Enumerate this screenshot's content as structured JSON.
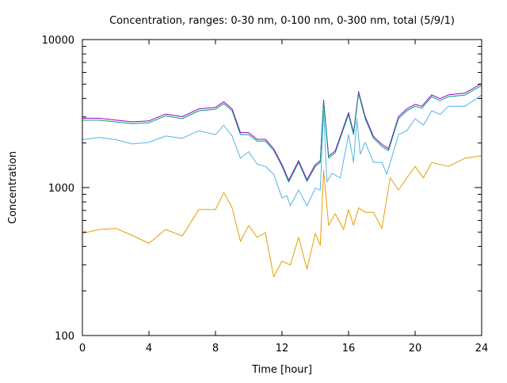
{
  "chart_data": {
    "type": "line",
    "title": "Concentration, ranges: 0-30 nm, 0-100 nm, 0-300 nm, total (5/9/1)",
    "xlabel": "Time [hour]",
    "ylabel": "Concentration",
    "xlim": [
      0,
      24
    ],
    "ylim": [
      100,
      10000
    ],
    "yscale": "log",
    "xticks": [
      "0",
      "4",
      "8",
      "12",
      "16",
      "20",
      "24"
    ],
    "xtick_values": [
      0,
      4,
      8,
      12,
      16,
      20,
      24
    ],
    "yticks": [
      "100",
      "1000",
      "10000"
    ],
    "ytick_values": [
      100,
      1000,
      10000
    ],
    "grid": false,
    "series": [
      {
        "name": "total",
        "color": "#9400d3",
        "x": [
          0,
          1,
          2,
          3,
          4,
          5,
          6,
          7,
          8,
          8.5,
          9,
          9.5,
          10,
          10.5,
          11,
          11.5,
          12,
          12.4,
          13,
          13.5,
          14,
          14.3,
          14.5,
          14.8,
          15.2,
          16,
          16.3,
          16.6,
          17,
          17.5,
          18,
          18.4,
          19,
          19.5,
          20,
          20.4,
          21,
          21.5,
          22,
          23,
          24
        ],
        "values": [
          2940,
          2940,
          2860,
          2780,
          2820,
          3140,
          3010,
          3400,
          3480,
          3800,
          3400,
          2350,
          2350,
          2120,
          2120,
          1830,
          1430,
          1120,
          1520,
          1130,
          1430,
          1520,
          3900,
          1630,
          1770,
          3210,
          2350,
          4450,
          3010,
          2210,
          1960,
          1830,
          3010,
          3400,
          3650,
          3540,
          4230,
          3990,
          4230,
          4350,
          5050
        ]
      },
      {
        "name": "0-300 nm",
        "color": "#009e73",
        "x": [
          0,
          1,
          2,
          3,
          4,
          5,
          6,
          7,
          8,
          8.5,
          9,
          9.5,
          10,
          10.5,
          11,
          11.5,
          12,
          12.4,
          13,
          13.5,
          14,
          14.3,
          14.5,
          14.8,
          15.2,
          16,
          16.3,
          16.6,
          17,
          17.5,
          18,
          18.4,
          19,
          19.5,
          20,
          20.4,
          21,
          21.5,
          22,
          23,
          24
        ],
        "values": [
          2850,
          2850,
          2780,
          2700,
          2740,
          3050,
          2920,
          3300,
          3380,
          3690,
          3300,
          2280,
          2280,
          2060,
          2060,
          1780,
          1390,
          1090,
          1480,
          1100,
          1390,
          1480,
          3810,
          1580,
          1720,
          3120,
          2280,
          4330,
          2920,
          2150,
          1900,
          1780,
          2920,
          3300,
          3540,
          3440,
          4110,
          3870,
          4110,
          4220,
          4900
        ]
      },
      {
        "name": "0-100 nm",
        "color": "#56b4e9",
        "x": [
          0,
          1,
          2,
          3,
          4,
          5,
          6,
          7,
          8,
          8.5,
          9,
          9.5,
          10,
          10.5,
          11,
          11.5,
          12,
          12.3,
          12.5,
          13,
          13.5,
          14,
          14.3,
          14.5,
          14.7,
          15,
          15.5,
          16,
          16.3,
          16.5,
          16.7,
          17,
          17.5,
          18,
          18.3,
          19,
          19.5,
          20,
          20.5,
          21,
          21.5,
          22,
          23,
          24
        ],
        "values": [
          2110,
          2180,
          2110,
          1970,
          2020,
          2230,
          2150,
          2420,
          2280,
          2640,
          2230,
          1580,
          1750,
          1440,
          1390,
          1230,
          851,
          880,
          753,
          964,
          753,
          990,
          964,
          3300,
          1090,
          1250,
          1160,
          2280,
          1480,
          2920,
          1680,
          2020,
          1480,
          1480,
          1230,
          2280,
          2420,
          2920,
          2640,
          3300,
          3120,
          3540,
          3540,
          4220
        ]
      },
      {
        "name": "0-30 nm",
        "color": "#e69f00",
        "x": [
          0,
          1,
          2,
          3,
          4,
          5,
          6,
          7,
          8,
          8.5,
          9,
          9.5,
          10,
          10.5,
          11,
          11.5,
          12,
          12.5,
          13,
          13.5,
          14,
          14.3,
          14.5,
          14.8,
          15.2,
          15.7,
          16,
          16.3,
          16.6,
          17,
          17.5,
          18,
          18.5,
          19,
          19.5,
          20,
          20.5,
          21,
          22,
          23,
          24
        ],
        "values": [
          490,
          521,
          530,
          475,
          420,
          521,
          470,
          710,
          710,
          925,
          730,
          433,
          555,
          461,
          495,
          249,
          318,
          300,
          461,
          281,
          490,
          407,
          1310,
          555,
          666,
          521,
          710,
          555,
          730,
          680,
          680,
          530,
          1160,
          964,
          1160,
          1390,
          1160,
          1480,
          1390,
          1580,
          1640
        ]
      }
    ]
  }
}
